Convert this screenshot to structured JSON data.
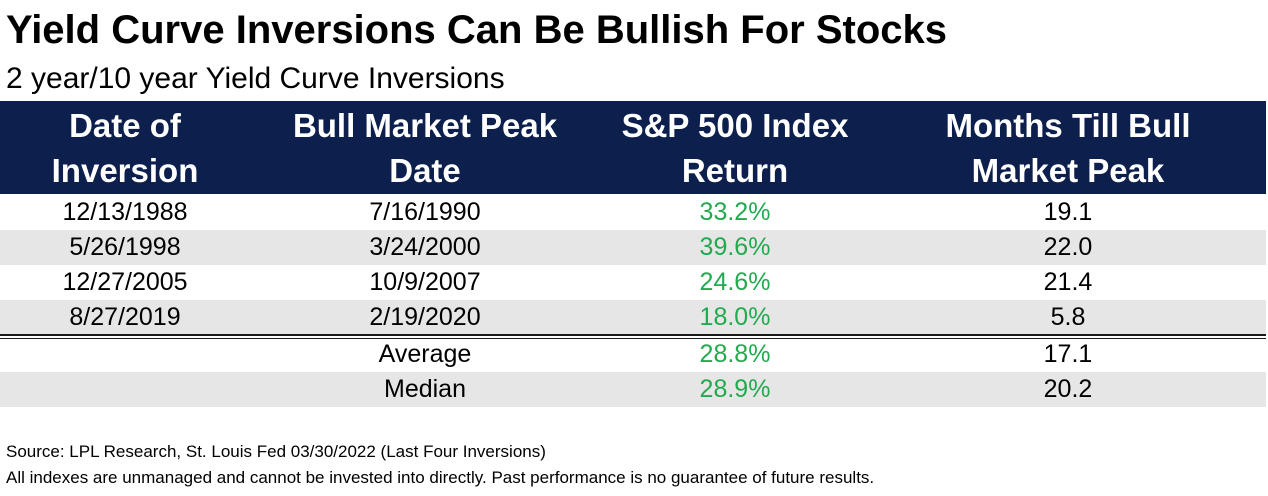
{
  "title": "Yield Curve Inversions Can Be Bullish For Stocks",
  "subtitle": "2 year/10 year Yield Curve Inversions",
  "colors": {
    "header_bg": "#0d1f4d",
    "header_text": "#ffffff",
    "return_green": "#22aa4e",
    "row_shade": "#e6e6e6"
  },
  "chart_data": {
    "type": "table",
    "columns": [
      "Date of\nInversion",
      "Bull Market Peak\nDate",
      "S&P 500  Index\nReturn",
      "Months Till Bull\nMarket Peak"
    ],
    "rows": [
      [
        "12/13/1988",
        "7/16/1990",
        "33.2%",
        "19.1"
      ],
      [
        "5/26/1998",
        "3/24/2000",
        "39.6%",
        "22.0"
      ],
      [
        "12/27/2005",
        "10/9/2007",
        "24.6%",
        "21.4"
      ],
      [
        "8/27/2019",
        "2/19/2020",
        "18.0%",
        "5.8"
      ]
    ],
    "summary": [
      [
        "",
        "Average",
        "28.8%",
        "17.1"
      ],
      [
        "",
        "Median",
        "28.9%",
        "20.2"
      ]
    ]
  },
  "footnotes": {
    "source": "Source: LPL Research, St. Louis Fed 03/30/2022 (Last Four Inversions)",
    "disclaimer": "All indexes are unmanaged and cannot be invested into directly. Past performance is no guarantee of future results."
  }
}
